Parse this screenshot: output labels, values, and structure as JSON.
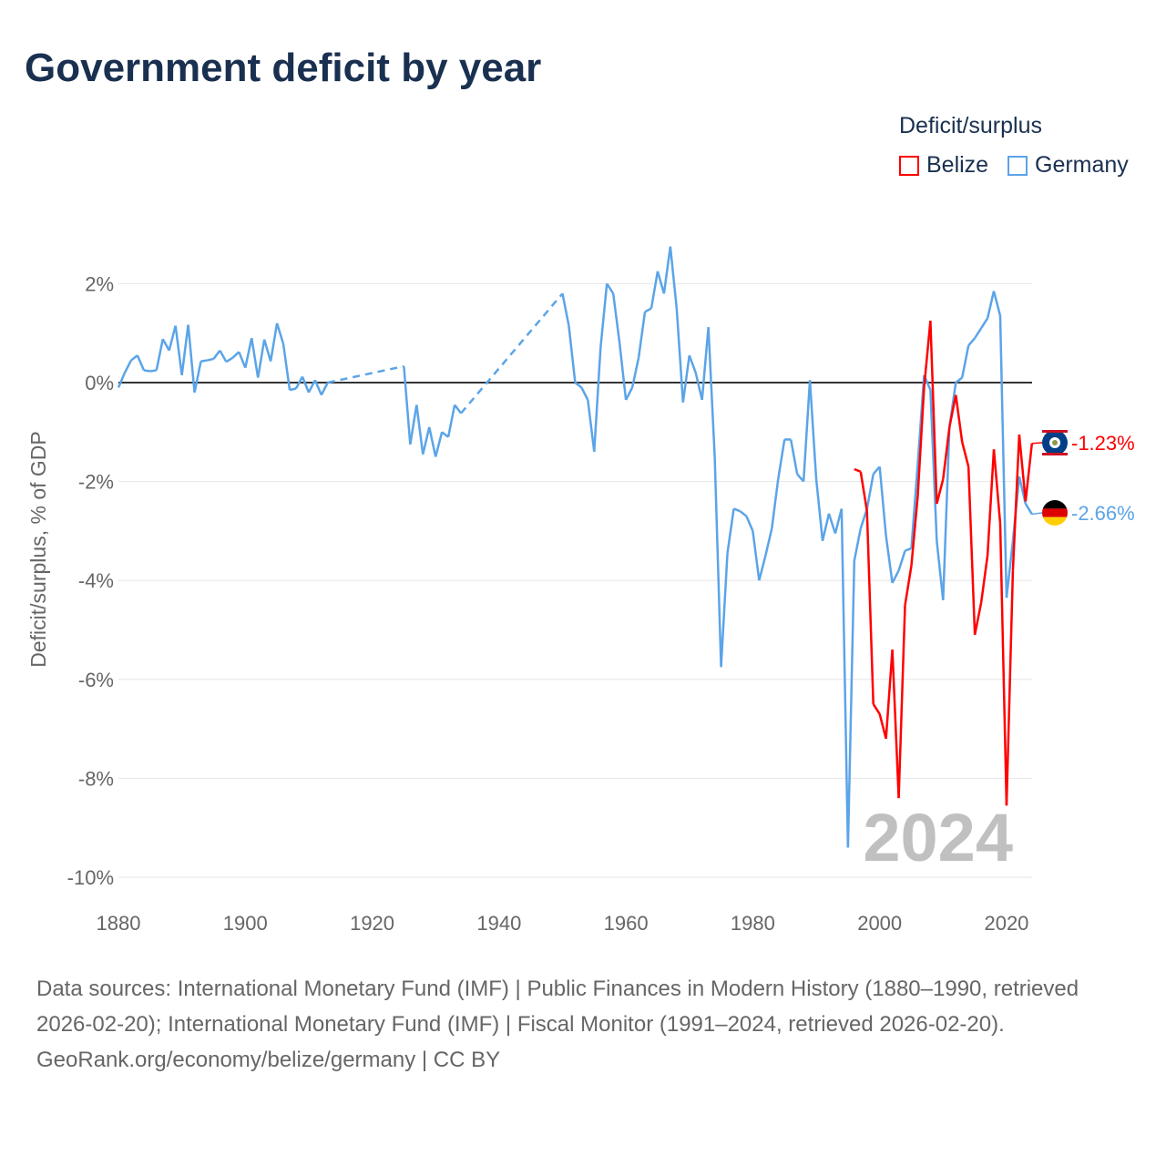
{
  "title": "Government deficit by year",
  "colors": {
    "Belize": "#ff0000",
    "Germany": "#5ba4e8"
  },
  "chart_data": {
    "type": "line",
    "title": "Government deficit by year",
    "ylabel": "Deficit/surplus, % of GDP",
    "xlabel": "",
    "legend_title": "Deficit/surplus",
    "legend_position": "top-right",
    "xlim": [
      1880,
      2024
    ],
    "ylim": [
      -10,
      2.8
    ],
    "xticks": [
      1880,
      1900,
      1920,
      1940,
      1960,
      1980,
      2000,
      2020
    ],
    "xtick_labels": [
      "1880",
      "1900",
      "1920",
      "1940",
      "1960",
      "1980",
      "2000",
      "2020"
    ],
    "yticks": [
      2,
      0,
      -2,
      -4,
      -6,
      -8,
      -10
    ],
    "ytick_labels": [
      "2%",
      "0%",
      "-2%",
      "-4%",
      "-6%",
      "-8%",
      "-10%"
    ],
    "year_watermark": "2024",
    "series": [
      {
        "name": "Belize",
        "end_label": "-1.23%",
        "x": [
          1996,
          1997,
          1998,
          1999,
          2000,
          2001,
          2002,
          2003,
          2004,
          2005,
          2006,
          2007,
          2008,
          2009,
          2010,
          2011,
          2012,
          2013,
          2014,
          2015,
          2016,
          2017,
          2018,
          2019,
          2020,
          2021,
          2022,
          2023,
          2024
        ],
        "values": [
          -1.75,
          -1.8,
          -2.6,
          -6.5,
          -6.7,
          -7.2,
          -5.4,
          -8.4,
          -4.5,
          -3.7,
          -2.3,
          -0.1,
          1.25,
          -2.45,
          -1.95,
          -0.9,
          -0.25,
          -1.2,
          -1.7,
          -5.1,
          -4.45,
          -3.5,
          -1.35,
          -2.85,
          -8.55,
          -3.8,
          -1.05,
          -2.4,
          -1.23
        ]
      },
      {
        "name": "Germany",
        "end_label": "-2.66%",
        "x": [
          1880,
          1881,
          1882,
          1883,
          1884,
          1885,
          1886,
          1887,
          1888,
          1889,
          1890,
          1891,
          1892,
          1893,
          1894,
          1895,
          1896,
          1897,
          1898,
          1899,
          1900,
          1901,
          1902,
          1903,
          1904,
          1905,
          1906,
          1907,
          1908,
          1909,
          1910,
          1911,
          1912,
          1913,
          1925,
          1926,
          1927,
          1928,
          1929,
          1930,
          1931,
          1932,
          1933,
          1934,
          1950,
          1951,
          1952,
          1953,
          1954,
          1955,
          1956,
          1957,
          1958,
          1959,
          1960,
          1961,
          1962,
          1963,
          1964,
          1965,
          1966,
          1967,
          1968,
          1969,
          1970,
          1971,
          1972,
          1973,
          1974,
          1975,
          1976,
          1977,
          1978,
          1979,
          1980,
          1981,
          1982,
          1983,
          1984,
          1985,
          1986,
          1987,
          1988,
          1989,
          1990,
          1991,
          1992,
          1993,
          1994,
          1995,
          1996,
          1997,
          1998,
          1999,
          2000,
          2001,
          2002,
          2003,
          2004,
          2005,
          2006,
          2007,
          2008,
          2009,
          2010,
          2011,
          2012,
          2013,
          2014,
          2015,
          2016,
          2017,
          2018,
          2019,
          2020,
          2021,
          2022,
          2023,
          2024
        ],
        "values": [
          -0.1,
          0.2,
          0.45,
          0.55,
          0.25,
          0.23,
          0.25,
          0.88,
          0.65,
          1.15,
          0.15,
          1.17,
          -0.2,
          0.43,
          0.45,
          0.48,
          0.65,
          0.42,
          0.5,
          0.62,
          0.3,
          0.9,
          0.1,
          0.87,
          0.43,
          1.2,
          0.78,
          -0.15,
          -0.12,
          0.12,
          -0.2,
          0.05,
          -0.25,
          0.0,
          0.33,
          -1.25,
          -0.45,
          -1.45,
          -0.9,
          -1.5,
          -1.0,
          -1.1,
          -0.45,
          -0.62,
          1.8,
          1.15,
          0.0,
          -0.1,
          -0.35,
          -1.4,
          0.7,
          2.0,
          1.8,
          0.8,
          -0.35,
          -0.1,
          0.5,
          1.43,
          1.5,
          2.25,
          1.8,
          2.75,
          1.5,
          -0.4,
          0.55,
          0.2,
          -0.35,
          1.12,
          -1.5,
          -5.75,
          -3.45,
          -2.55,
          -2.6,
          -2.7,
          -3.0,
          -4.0,
          -3.5,
          -2.95,
          -1.95,
          -1.15,
          -1.15,
          -1.85,
          -2.0,
          0.05,
          -1.95,
          -3.2,
          -2.65,
          -3.05,
          -2.55,
          -9.4,
          -3.6,
          -2.95,
          -2.55,
          -1.85,
          -1.7,
          -3.1,
          -4.05,
          -3.8,
          -3.4,
          -3.35,
          -1.65,
          0.15,
          -0.15,
          -3.2,
          -4.4,
          -0.9,
          0.0,
          0.1,
          0.75,
          0.9,
          1.1,
          1.3,
          1.85,
          1.35,
          -4.35,
          -3.2,
          -1.9,
          -2.45,
          -2.66
        ]
      }
    ]
  },
  "footer": {
    "sources": "Data sources: International Monetary Fund (IMF) | Public Finances in Modern History (1880–1990, retrieved 2026-02-20); International Monetary Fund (IMF) | Fiscal Monitor (1991–2024, retrieved 2026-02-20).",
    "credit": "GeoRank.org/economy/belize/germany | CC BY"
  }
}
